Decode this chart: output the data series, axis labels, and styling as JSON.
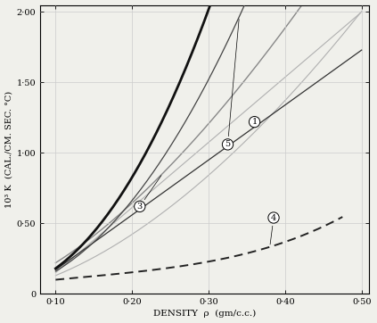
{
  "title": "",
  "xlabel": "DENSITY  ρ  (gm/c.c.)",
  "ylabel": "10³ K  (CAL./CM. SEC. °C)",
  "xlim": [
    0.08,
    0.51
  ],
  "ylim": [
    0.0,
    2.05
  ],
  "xticks": [
    0.1,
    0.2,
    0.3,
    0.4,
    0.5
  ],
  "yticks": [
    0.0,
    0.5,
    1.0,
    1.5,
    2.0
  ],
  "xtick_labels": [
    "0·10",
    "0·20",
    "0·30",
    "0·40",
    "0·50"
  ],
  "ytick_labels": [
    "0",
    "0·50",
    "1·00",
    "1·50",
    "2·00"
  ],
  "grid_color": "#cccccc",
  "background_color": "#f0f0eb"
}
